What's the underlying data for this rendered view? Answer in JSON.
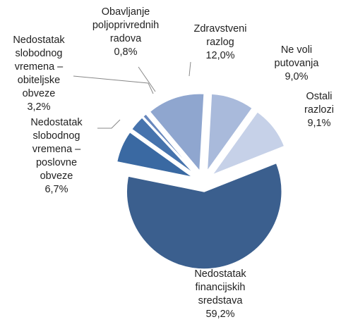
{
  "chart_data": {
    "type": "pie",
    "categories": [
      "Zdravstveni razlog",
      "Ne voli putovanja",
      "Ostali razlozi",
      "Nedostatak financijskih sredstava",
      "Nedostatak slobodnog vremena – poslovne obveze",
      "Nedostatak slobodnog vremena – obiteljske obveze",
      "Obavljanje poljoprivrednih radova"
    ],
    "values": [
      12.0,
      9.0,
      9.1,
      59.2,
      6.7,
      3.2,
      0.8
    ],
    "value_labels": [
      "12,0%",
      "9,0%",
      "9,1%",
      "59,2%",
      "6,7%",
      "3,2%",
      "0,8%"
    ],
    "colors": [
      "#8fa6cf",
      "#a9badb",
      "#c6d1e8",
      "#3b5f8e",
      "#3a69a2",
      "#4673ad",
      "#6787bd"
    ]
  }
}
